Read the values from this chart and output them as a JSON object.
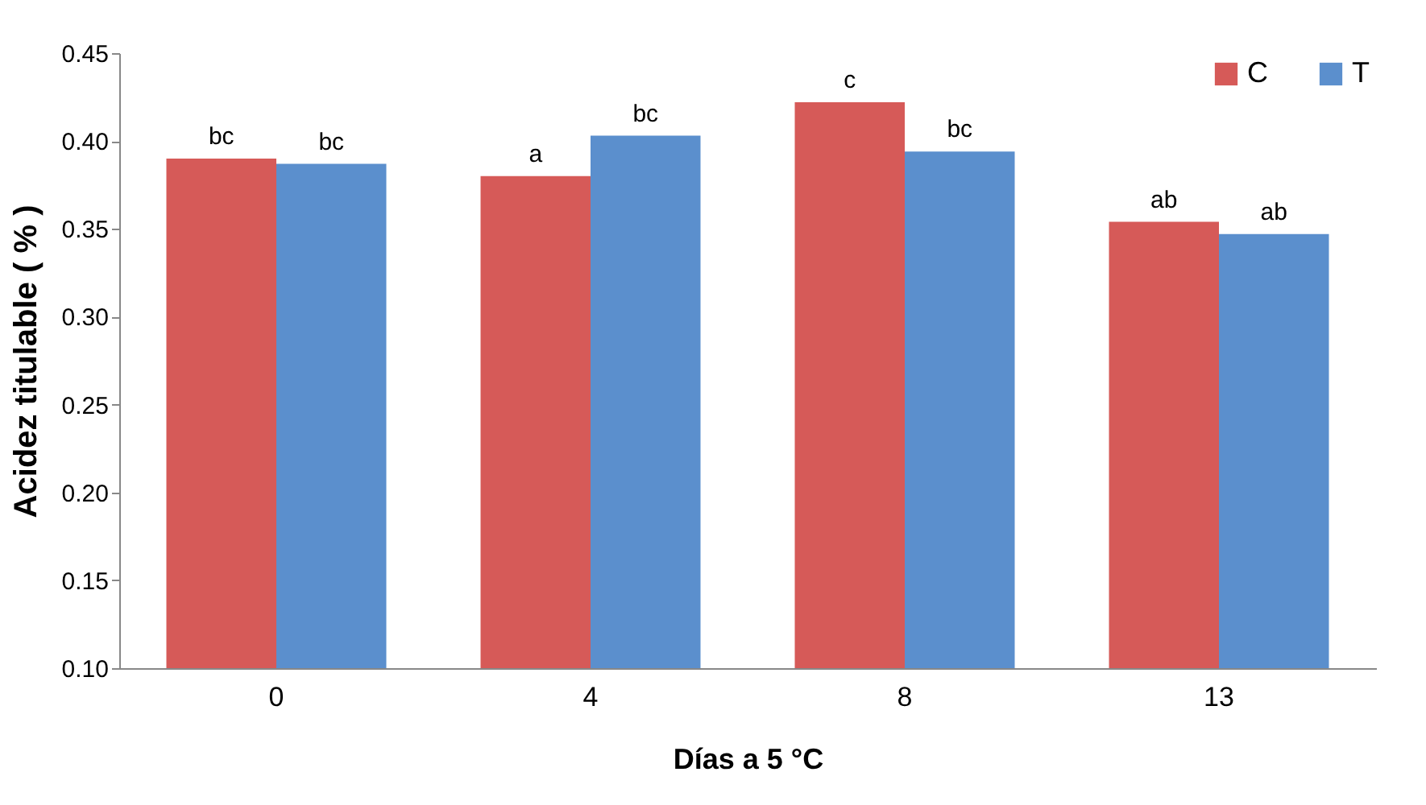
{
  "chart_data": {
    "type": "bar",
    "xlabel": "Días a 5 °C",
    "ylabel": "Acidez titulable ( % )",
    "categories": [
      "0",
      "4",
      "8",
      "13"
    ],
    "series": [
      {
        "name": "C",
        "color": "#d65a58",
        "values": [
          0.39,
          0.38,
          0.422,
          0.354
        ],
        "value_labels": [
          "bc",
          "a",
          "c",
          "ab"
        ]
      },
      {
        "name": "T",
        "color": "#5b8fcd",
        "values": [
          0.387,
          0.403,
          0.394,
          0.347
        ],
        "value_labels": [
          "bc",
          "bc",
          "bc",
          "ab"
        ]
      }
    ],
    "ylim": [
      0.1,
      0.45
    ],
    "yticks": [
      {
        "value": 0.1,
        "label": "0.10"
      },
      {
        "value": 0.15,
        "label": "0.15"
      },
      {
        "value": 0.2,
        "label": "0.20"
      },
      {
        "value": 0.25,
        "label": "0.25"
      },
      {
        "value": 0.3,
        "label": "0.30"
      },
      {
        "value": 0.35,
        "label": "0.35"
      },
      {
        "value": 0.4,
        "label": "0.40"
      },
      {
        "value": 0.45,
        "label": "0.45"
      }
    ],
    "grid": false,
    "legend": "top right"
  }
}
